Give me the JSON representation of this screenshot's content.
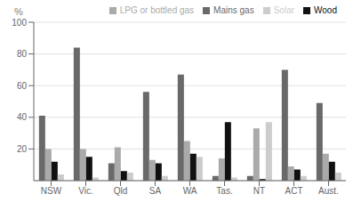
{
  "chart_data": {
    "type": "bar",
    "ylabel": "%",
    "categories": [
      "NSW",
      "Vic.",
      "Qld",
      "SA",
      "WA",
      "Tas.",
      "NT",
      "ACT",
      "Aust."
    ],
    "series": [
      {
        "name": "Mains gas",
        "color": "#696969",
        "values": [
          41,
          84,
          11,
          56,
          67,
          3,
          3,
          70,
          49
        ]
      },
      {
        "name": "LPG or bottled gas",
        "color": "#aaaaaa",
        "values": [
          20,
          20,
          21,
          13,
          25,
          14,
          33,
          9,
          17
        ]
      },
      {
        "name": "Wood",
        "color": "#111111",
        "values": [
          12,
          15,
          6,
          11,
          17,
          37,
          1,
          7,
          12
        ]
      },
      {
        "name": "Solar",
        "color": "#cccccc",
        "values": [
          4,
          2,
          5,
          3,
          15,
          2,
          37,
          3,
          5
        ]
      }
    ],
    "ylim": [
      0,
      100
    ],
    "yticks": [
      20,
      40,
      60,
      80,
      100
    ],
    "grid": true,
    "legend": "upper right"
  }
}
